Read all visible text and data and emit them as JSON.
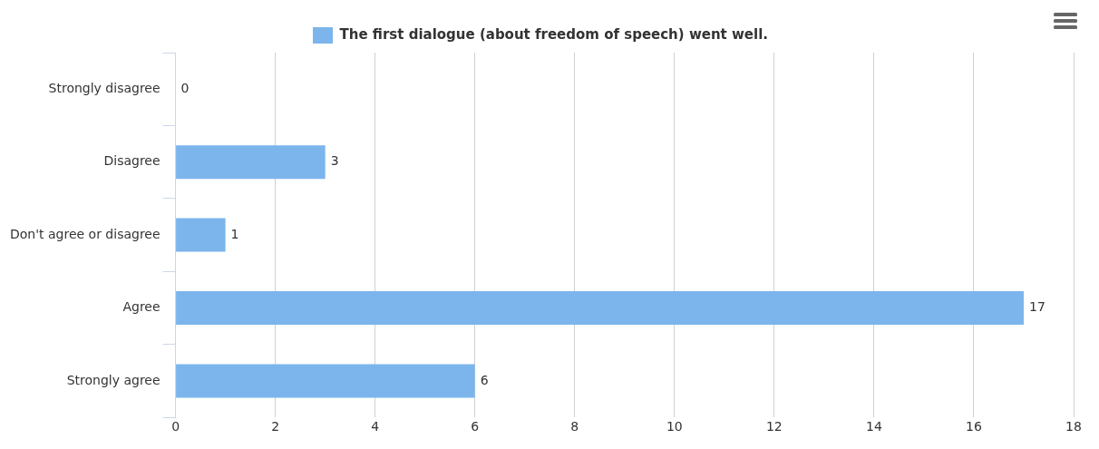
{
  "chart_data": {
    "type": "bar",
    "orientation": "horizontal",
    "categories": [
      "Strongly disagree",
      "Disagree",
      "Don't agree or disagree",
      "Agree",
      "Strongly agree"
    ],
    "series": [
      {
        "name": "The first dialogue (about freedom of speech) went well.",
        "color": "#7cb5ec",
        "values": [
          0,
          3,
          1,
          17,
          6
        ]
      }
    ],
    "xlim": [
      0,
      18
    ],
    "xticks": [
      0,
      2,
      4,
      6,
      8,
      10,
      12,
      14,
      16,
      18
    ],
    "grid": "x",
    "legend": "top",
    "data_labels": true
  }
}
